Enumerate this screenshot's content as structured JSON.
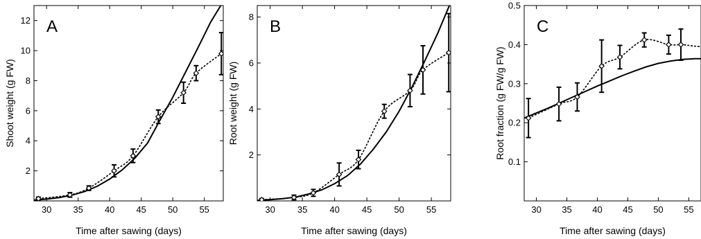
{
  "chart_data": [
    {
      "type": "line",
      "panel_label": "A",
      "xlabel": "Time after sawing (days)",
      "ylabel": "Shoot weight (g FW)",
      "xlim": [
        28,
        58
      ],
      "ylim": [
        0,
        13
      ],
      "xticks": [
        30,
        35,
        40,
        45,
        50,
        55
      ],
      "yticks": [
        2,
        4,
        6,
        8,
        10,
        12
      ],
      "grid": false,
      "series": [
        {
          "style": "solid",
          "x": [
            28,
            30,
            32,
            34,
            36,
            38,
            40,
            42,
            44,
            46,
            48,
            50,
            52,
            54,
            56,
            57.6
          ],
          "values": [
            0.05,
            0.12,
            0.22,
            0.38,
            0.62,
            0.97,
            1.45,
            2.07,
            2.85,
            3.85,
            5.4,
            6.9,
            8.55,
            10.2,
            11.9,
            13.0
          ]
        },
        {
          "style": "dashed-with-markers",
          "x": [
            28.7,
            33.7,
            36.7,
            40.7,
            43.7,
            47.7,
            51.7,
            53.7,
            57.7
          ],
          "values": [
            0.15,
            0.4,
            0.85,
            2.0,
            3.0,
            5.6,
            7.2,
            8.5,
            9.8
          ],
          "errors": [
            0.1,
            0.15,
            0.15,
            0.4,
            0.45,
            0.45,
            0.7,
            0.5,
            1.4
          ]
        }
      ]
    },
    {
      "type": "line",
      "panel_label": "B",
      "xlabel": "Time after sawing (days)",
      "ylabel": "Root weight (g FW)",
      "xlim": [
        28,
        58
      ],
      "ylim": [
        0,
        8.5
      ],
      "xticks": [
        30,
        35,
        40,
        45,
        50,
        55
      ],
      "yticks": [
        2,
        4,
        6,
        8
      ],
      "grid": false,
      "series": [
        {
          "style": "solid",
          "x": [
            28,
            30,
            32,
            34,
            36,
            38,
            40,
            42,
            44,
            46,
            48,
            50,
            52,
            54,
            56,
            57.8
          ],
          "values": [
            0.02,
            0.05,
            0.1,
            0.17,
            0.3,
            0.48,
            0.75,
            1.1,
            1.6,
            2.25,
            3.0,
            3.9,
            4.95,
            6.1,
            7.3,
            8.5
          ]
        },
        {
          "style": "dashed-with-markers",
          "x": [
            28.7,
            33.7,
            36.7,
            40.7,
            43.7,
            47.7,
            51.7,
            53.7,
            57.7
          ],
          "values": [
            0.05,
            0.15,
            0.35,
            1.15,
            1.8,
            3.9,
            4.8,
            5.7,
            6.45
          ],
          "errors": [
            0.05,
            0.1,
            0.15,
            0.5,
            0.4,
            0.3,
            0.7,
            1.05,
            1.7
          ]
        }
      ]
    },
    {
      "type": "line",
      "panel_label": "C",
      "xlabel": "Time after sawing (days)",
      "ylabel": "Root fraction (g FW/g FW)",
      "xlim": [
        28,
        57
      ],
      "ylim": [
        0,
        0.5
      ],
      "xticks": [
        30,
        35,
        40,
        45,
        50,
        55
      ],
      "yticks": [
        0.1,
        0.2,
        0.3,
        0.4,
        0.5
      ],
      "grid": false,
      "series": [
        {
          "style": "solid",
          "x": [
            28,
            30,
            32,
            34,
            36,
            38,
            40,
            42,
            44,
            46,
            48,
            50,
            52,
            54,
            56,
            57
          ],
          "values": [
            0.212,
            0.225,
            0.238,
            0.252,
            0.266,
            0.28,
            0.294,
            0.307,
            0.32,
            0.332,
            0.343,
            0.352,
            0.358,
            0.362,
            0.364,
            0.364
          ]
        },
        {
          "style": "dashed-with-markers",
          "x": [
            28.7,
            33.7,
            36.7,
            40.7,
            43.7,
            47.7,
            51.7,
            53.7
          ],
          "values": [
            0.212,
            0.248,
            0.266,
            0.345,
            0.368,
            0.412,
            0.4,
            0.4
          ],
          "errors": [
            0.05,
            0.043,
            0.036,
            0.067,
            0.03,
            0.018,
            0.024,
            0.04
          ]
        }
      ]
    }
  ]
}
